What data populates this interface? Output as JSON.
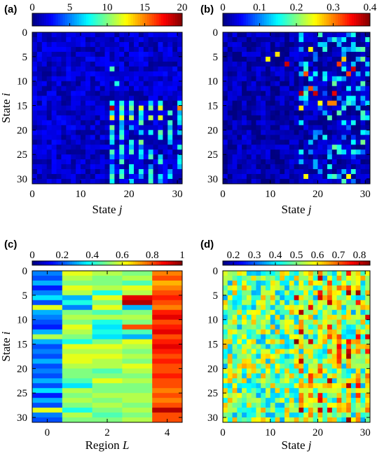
{
  "chart_data": [
    {
      "type": "heatmap",
      "panel_label": "(a)",
      "xlabel": "State",
      "xlabel_var": "j",
      "ylabel": "State",
      "ylabel_var": "i",
      "rows": 31,
      "cols": 31,
      "xlim": [
        0,
        31
      ],
      "ylim": [
        31,
        0
      ],
      "x_ticks": [
        "0",
        "10",
        "20",
        "30"
      ],
      "x_tick_values": [
        0,
        10,
        20,
        30
      ],
      "y_ticks": [
        "0",
        "5",
        "10",
        "15",
        "20",
        "25",
        "30"
      ],
      "y_tick_values": [
        0,
        5,
        10,
        15,
        20,
        25,
        30
      ],
      "colorbar": {
        "range": [
          0,
          20
        ],
        "tick_labels": [
          "0",
          "5",
          "10",
          "15",
          "20"
        ],
        "tick_values": [
          0,
          5,
          10,
          15,
          20
        ]
      },
      "colormap": "jet",
      "background_value": 1.5,
      "background_jitter": 2.5,
      "noted_cells": [
        {
          "row": 15,
          "col": 16,
          "value": 19
        },
        {
          "row": 15,
          "col": 30,
          "value": 15
        },
        {
          "row": 15,
          "col": 26,
          "value": 12
        },
        {
          "row": 15,
          "col": 22,
          "value": 12
        },
        {
          "row": 17,
          "col": 16,
          "value": 13
        },
        {
          "row": 17,
          "col": 18,
          "value": 12
        },
        {
          "row": 17,
          "col": 20,
          "value": 11
        },
        {
          "row": 17,
          "col": 24,
          "value": 11
        },
        {
          "row": 17,
          "col": 26,
          "value": 12
        },
        {
          "row": 15,
          "col": 18,
          "value": 10
        },
        {
          "row": 15,
          "col": 20,
          "value": 10
        },
        {
          "row": 15,
          "col": 24,
          "value": 10
        },
        {
          "row": 19,
          "col": 16,
          "value": 10
        },
        {
          "row": 21,
          "col": 18,
          "value": 9
        },
        {
          "row": 22,
          "col": 22,
          "value": 10
        },
        {
          "row": 24,
          "col": 16,
          "value": 9
        },
        {
          "row": 24,
          "col": 20,
          "value": 9
        },
        {
          "row": 26,
          "col": 18,
          "value": 9
        },
        {
          "row": 7,
          "col": 16,
          "value": 9
        },
        {
          "row": 10,
          "col": 17,
          "value": 8
        }
      ]
    },
    {
      "type": "heatmap",
      "panel_label": "(b)",
      "xlabel": "State",
      "xlabel_var": "j",
      "ylabel": "",
      "ylabel_var": "",
      "rows": 31,
      "cols": 31,
      "xlim": [
        0,
        31
      ],
      "ylim": [
        31,
        0
      ],
      "x_ticks": [
        "0",
        "10",
        "20",
        "30"
      ],
      "x_tick_values": [
        0,
        10,
        20,
        30
      ],
      "y_ticks": [
        "0",
        "5",
        "10",
        "15",
        "20",
        "25",
        "30"
      ],
      "y_tick_values": [
        0,
        5,
        10,
        15,
        20,
        25,
        30
      ],
      "colorbar": {
        "range": [
          0,
          0.4
        ],
        "tick_labels": [
          "0",
          "0.1",
          "0.2",
          "0.3",
          "0.4"
        ],
        "tick_values": [
          0,
          0.1,
          0.2,
          0.3,
          0.4
        ]
      },
      "colormap": "jet",
      "background_value": 0.02,
      "background_jitter": 0.05,
      "noted_cells": [
        {
          "row": 6,
          "col": 13,
          "value": 0.37
        },
        {
          "row": 12,
          "col": 16,
          "value": 0.38
        },
        {
          "row": 12,
          "col": 19,
          "value": 0.37
        },
        {
          "row": 12,
          "col": 23,
          "value": 0.36
        },
        {
          "row": 7,
          "col": 27,
          "value": 0.37
        },
        {
          "row": 8,
          "col": 26,
          "value": 0.33
        },
        {
          "row": 8,
          "col": 17,
          "value": 0.32
        },
        {
          "row": 14,
          "col": 22,
          "value": 0.3
        },
        {
          "row": 14,
          "col": 23,
          "value": 0.3
        },
        {
          "row": 11,
          "col": 18,
          "value": 0.32
        },
        {
          "row": 5,
          "col": 25,
          "value": 0.27
        },
        {
          "row": 6,
          "col": 24,
          "value": 0.33
        },
        {
          "row": 3,
          "col": 18,
          "value": 0.25
        },
        {
          "row": 4,
          "col": 11,
          "value": 0.26
        },
        {
          "row": 5,
          "col": 9,
          "value": 0.25
        },
        {
          "row": 15,
          "col": 16,
          "value": 0.26
        },
        {
          "row": 14,
          "col": 20,
          "value": 0.25
        },
        {
          "row": 29,
          "col": 17,
          "value": 0.25
        },
        {
          "row": 29,
          "col": 26,
          "value": 0.25
        }
      ]
    },
    {
      "type": "heatmap",
      "panel_label": "(c)",
      "xlabel": "Region",
      "xlabel_var": "L",
      "ylabel": "State",
      "ylabel_var": "i",
      "rows": 31,
      "cols": 5,
      "xlim": [
        -0.5,
        4.5
      ],
      "ylim": [
        31,
        0
      ],
      "x_ticks": [
        "0",
        "2",
        "4"
      ],
      "x_tick_values": [
        0,
        2,
        4
      ],
      "y_ticks": [
        "0",
        "5",
        "10",
        "15",
        "20",
        "25",
        "30"
      ],
      "y_tick_values": [
        0,
        5,
        10,
        15,
        20,
        25,
        30
      ],
      "colorbar": {
        "range": [
          0,
          1
        ],
        "tick_labels": [
          "0",
          "0.2",
          "0.4",
          "0.6",
          "0.8",
          "1"
        ],
        "tick_values": [
          0,
          0.2,
          0.4,
          0.6,
          0.8,
          1
        ]
      },
      "colormap": "jet",
      "columns": [
        [
          0.25,
          0.2,
          0.3,
          0.15,
          0.25,
          0.35,
          0.2,
          0.6,
          0.3,
          0.25,
          0.2,
          0.15,
          0.3,
          0.55,
          0.3,
          0.2,
          0.25,
          0.2,
          0.3,
          0.2,
          0.25,
          0.2,
          0.3,
          0.2,
          0.35,
          0.15,
          0.3,
          0.2,
          0.6,
          0.25,
          0.2
        ],
        [
          0.6,
          0.55,
          0.5,
          0.6,
          0.55,
          0.3,
          0.4,
          0.25,
          0.5,
          0.55,
          0.5,
          0.6,
          0.55,
          0.5,
          0.4,
          0.6,
          0.55,
          0.6,
          0.6,
          0.55,
          0.5,
          0.5,
          0.45,
          0.35,
          0.55,
          0.5,
          0.55,
          0.5,
          0.4,
          0.55,
          0.5
        ],
        [
          0.55,
          0.5,
          0.5,
          0.55,
          0.4,
          0.6,
          0.5,
          0.6,
          0.45,
          0.55,
          0.4,
          0.35,
          0.4,
          0.35,
          0.5,
          0.6,
          0.55,
          0.6,
          0.55,
          0.55,
          0.45,
          0.5,
          0.6,
          0.5,
          0.5,
          0.55,
          0.5,
          0.55,
          0.5,
          0.45,
          0.5
        ],
        [
          0.5,
          0.55,
          0.45,
          0.6,
          0.55,
          0.9,
          0.95,
          0.3,
          0.5,
          0.55,
          0.5,
          0.8,
          0.45,
          0.3,
          0.6,
          0.55,
          0.5,
          0.55,
          0.5,
          0.6,
          0.55,
          0.5,
          0.55,
          0.5,
          0.5,
          0.55,
          0.55,
          0.5,
          0.55,
          0.5,
          0.55
        ],
        [
          0.75,
          0.8,
          0.7,
          0.75,
          0.8,
          0.85,
          0.8,
          0.75,
          0.85,
          0.9,
          0.8,
          0.85,
          0.9,
          0.8,
          0.85,
          0.9,
          0.85,
          0.8,
          0.85,
          0.8,
          0.8,
          0.85,
          0.8,
          0.8,
          0.75,
          0.8,
          0.75,
          0.8,
          0.95,
          0.8,
          0.8
        ]
      ]
    },
    {
      "type": "heatmap",
      "panel_label": "(d)",
      "xlabel": "State",
      "xlabel_var": "j",
      "ylabel": "",
      "ylabel_var": "",
      "rows": 31,
      "cols": 31,
      "xlim": [
        0,
        31
      ],
      "ylim": [
        31,
        0
      ],
      "x_ticks": [
        "0",
        "10",
        "20",
        "30"
      ],
      "x_tick_values": [
        0,
        10,
        20,
        30
      ],
      "y_ticks": [
        "0",
        "5",
        "10",
        "15",
        "20",
        "25",
        "30"
      ],
      "y_tick_values": [
        0,
        5,
        10,
        15,
        20,
        25,
        30
      ],
      "colorbar": {
        "range": [
          0.15,
          0.85
        ],
        "tick_labels": [
          "0.2",
          "0.3",
          "0.4",
          "0.5",
          "0.6",
          "0.7",
          "0.8"
        ],
        "tick_values": [
          0.2,
          0.3,
          0.4,
          0.5,
          0.6,
          0.7,
          0.8
        ]
      },
      "colormap": "jet",
      "background_value": 0.5,
      "background_jitter": 0.3,
      "noted_cells": [
        {
          "row": 5,
          "col": 15,
          "value": 0.8
        },
        {
          "row": 8,
          "col": 16,
          "value": 0.82
        },
        {
          "row": 12,
          "col": 16,
          "value": 0.8
        },
        {
          "row": 14,
          "col": 15,
          "value": 0.85
        },
        {
          "row": 28,
          "col": 16,
          "value": 0.82
        },
        {
          "row": 16,
          "col": 26,
          "value": 0.8
        }
      ]
    }
  ]
}
